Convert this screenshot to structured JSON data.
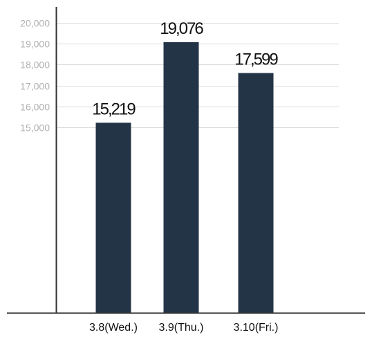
{
  "chart_data": {
    "type": "bar",
    "categories": [
      "3.8(Wed.)",
      "3.9(Thu.)",
      "3.10(Fri.)"
    ],
    "values": [
      15219,
      19076,
      17599
    ],
    "data_labels": [
      "15,219",
      "19,076",
      "17,599"
    ],
    "y_ticks": [
      15000,
      16000,
      17000,
      18000,
      19000,
      20000
    ],
    "y_tick_labels": [
      "15,000",
      "16,000",
      "17,000",
      "18,000",
      "19,000",
      "20,000"
    ],
    "title": "",
    "xlabel": "",
    "ylabel": "",
    "grid": true,
    "bar_color": "#243447",
    "grid_color": "#d9d9d9",
    "tick_label_color": "#b0b0b0"
  }
}
